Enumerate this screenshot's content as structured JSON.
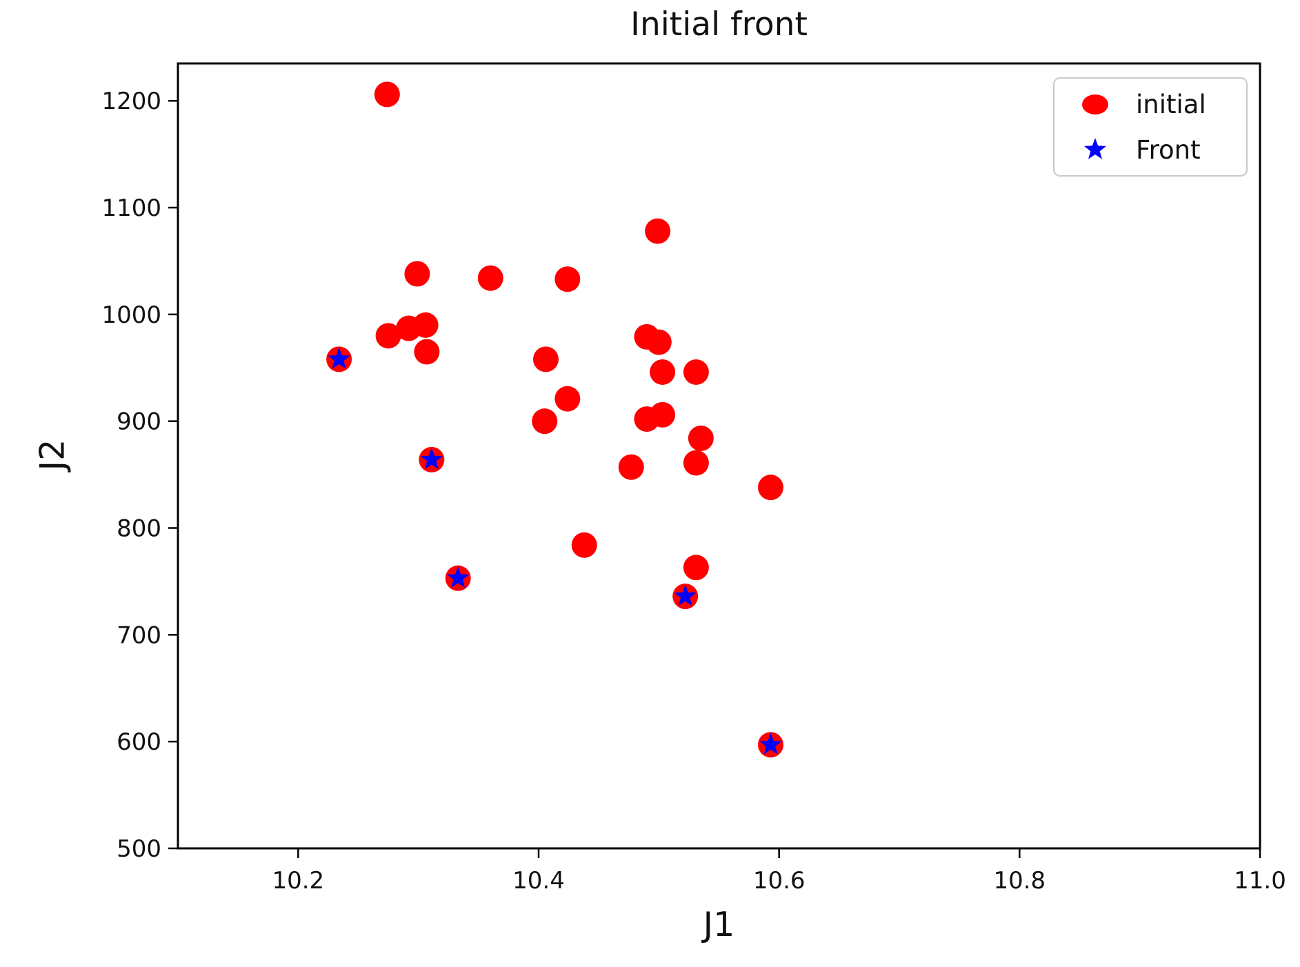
{
  "title": "Initial front",
  "colors": {
    "initial": "#ff0000",
    "front": "#0000ff",
    "spine": "#000000",
    "tick_text": "#111111",
    "legend_border": "#c9c9c9",
    "background": "#ffffff"
  },
  "legend": {
    "entries": [
      {
        "label": "initial",
        "marker": "circle",
        "color": "#ff0000"
      },
      {
        "label": "Front",
        "marker": "star",
        "color": "#0000ff"
      }
    ]
  },
  "chart_data": {
    "type": "scatter",
    "title": "Initial front",
    "xlabel": "J1",
    "ylabel": "J2",
    "xlim": [
      10.1,
      11.0
    ],
    "ylim": [
      500,
      1235
    ],
    "xticks": [
      10.2,
      10.4,
      10.6,
      10.8,
      11.0
    ],
    "xtick_labels": [
      "10.2",
      "10.4",
      "10.6",
      "10.8",
      "11.0"
    ],
    "yticks": [
      500,
      600,
      700,
      800,
      900,
      1000,
      1100,
      1200
    ],
    "ytick_labels": [
      "500",
      "600",
      "700",
      "800",
      "900",
      "1000",
      "1100",
      "1200"
    ],
    "grid": false,
    "legend_position": "upper right",
    "series": [
      {
        "name": "initial",
        "marker": "circle",
        "color": "#ff0000",
        "points": [
          [
            10.274,
            1206
          ],
          [
            10.299,
            1038
          ],
          [
            10.36,
            1034
          ],
          [
            10.424,
            1033
          ],
          [
            10.499,
            1078
          ],
          [
            10.275,
            980
          ],
          [
            10.292,
            987
          ],
          [
            10.306,
            990
          ],
          [
            10.307,
            965
          ],
          [
            10.234,
            958
          ],
          [
            10.406,
            958
          ],
          [
            10.424,
            921
          ],
          [
            10.405,
            900
          ],
          [
            10.49,
            979
          ],
          [
            10.5,
            974
          ],
          [
            10.503,
            946
          ],
          [
            10.531,
            946
          ],
          [
            10.49,
            902
          ],
          [
            10.503,
            906
          ],
          [
            10.535,
            884
          ],
          [
            10.311,
            864
          ],
          [
            10.477,
            857
          ],
          [
            10.531,
            861
          ],
          [
            10.593,
            838
          ],
          [
            10.438,
            784
          ],
          [
            10.531,
            763
          ],
          [
            10.333,
            753
          ],
          [
            10.522,
            736
          ],
          [
            10.593,
            597
          ]
        ]
      },
      {
        "name": "Front",
        "marker": "star",
        "color": "#0000ff",
        "points": [
          [
            10.234,
            958
          ],
          [
            10.311,
            864
          ],
          [
            10.333,
            753
          ],
          [
            10.522,
            736
          ],
          [
            10.593,
            597
          ]
        ]
      }
    ]
  }
}
